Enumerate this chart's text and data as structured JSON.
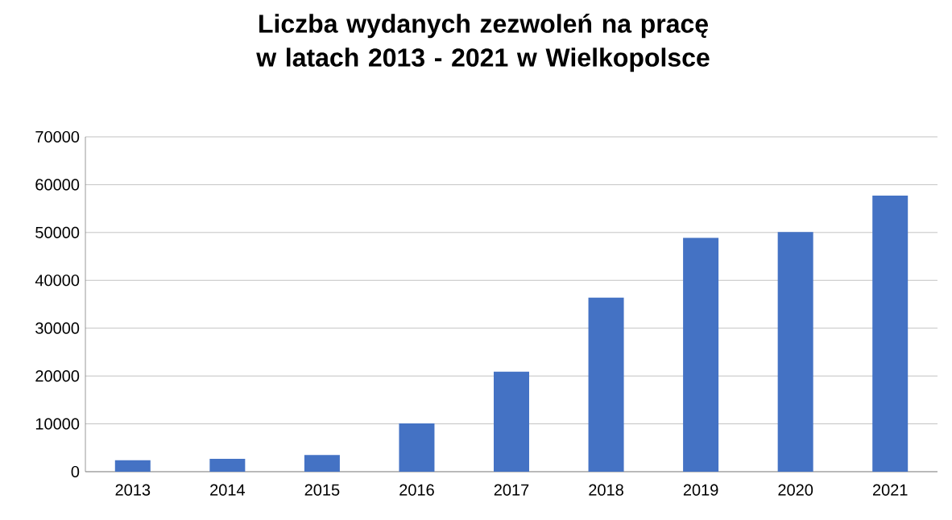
{
  "chart_data": {
    "type": "bar",
    "title": "Liczba wydanych zezwoleń na pracę w latach 2013 - 2021 w Wielkopolsce",
    "categories": [
      "2013",
      "2014",
      "2015",
      "2016",
      "2017",
      "2018",
      "2019",
      "2020",
      "2021"
    ],
    "values": [
      2400,
      2700,
      3500,
      10100,
      20900,
      36400,
      48900,
      50100,
      57700
    ],
    "color": "#4472c4",
    "ylim": [
      0,
      70000
    ],
    "yticks": [
      0,
      10000,
      20000,
      30000,
      40000,
      50000,
      60000,
      70000
    ],
    "grid": "y"
  }
}
